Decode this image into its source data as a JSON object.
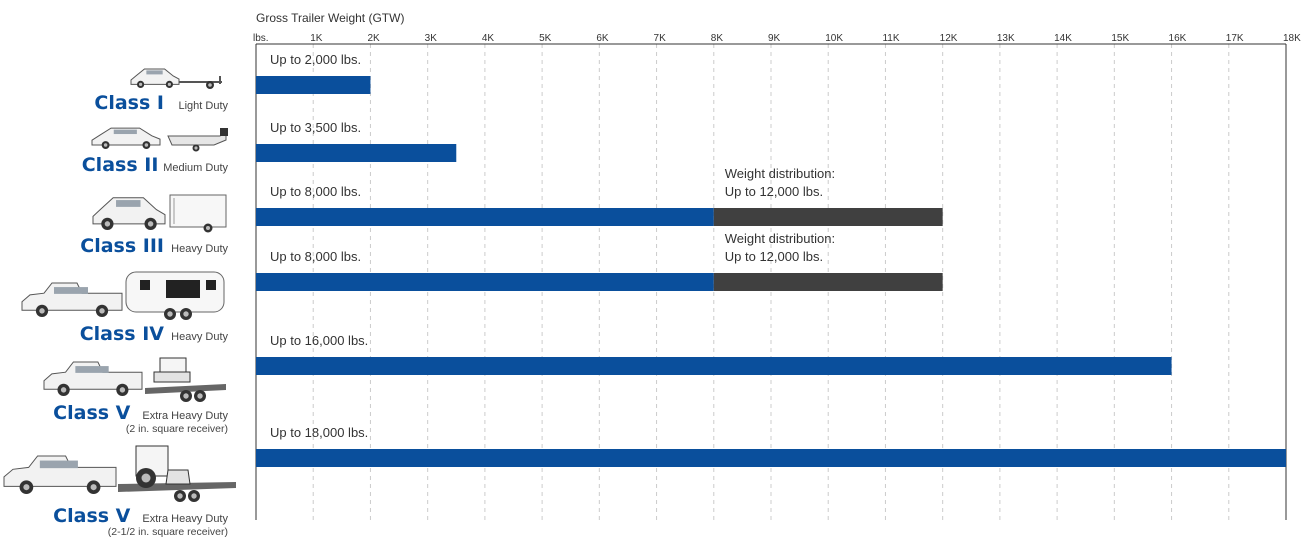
{
  "chart_data": {
    "type": "bar",
    "orientation": "horizontal",
    "stacked": true,
    "title": "Gross Trailer Weight  (GTW)",
    "x_ticks": [
      "lbs.",
      "1K",
      "2K",
      "3K",
      "4K",
      "5K",
      "6K",
      "7K",
      "8K",
      "9K",
      "10K",
      "11K",
      "12K",
      "13K",
      "14K",
      "15K",
      "16K",
      "17K",
      "18K"
    ],
    "xlim": [
      0,
      18000
    ],
    "grid": "vertical dashed",
    "categories": [
      {
        "name": "Class I",
        "duty": "Light Duty",
        "note": "",
        "icon": "car-with-utility-trailer-icon"
      },
      {
        "name": "Class II",
        "duty": "Medium Duty",
        "note": "",
        "icon": "sedan-with-boat-trailer-icon"
      },
      {
        "name": "Class III",
        "duty": "Heavy Duty",
        "note": "",
        "icon": "suv-with-cargo-trailer-icon"
      },
      {
        "name": "Class IV",
        "duty": "Heavy Duty",
        "note": "",
        "icon": "pickup-with-camper-trailer-icon"
      },
      {
        "name": "Class V",
        "duty": "Extra Heavy Duty",
        "note": "(2 in. square receiver)",
        "icon": "pickup-with-skid-steer-trailer-icon"
      },
      {
        "name": "Class V",
        "duty": "Extra Heavy Duty",
        "note": "(2-1/2 in. square receiver)",
        "icon": "pickup-with-loader-trailer-icon"
      }
    ],
    "series": [
      {
        "values": [
          2000,
          3500,
          8000,
          8000,
          16000,
          18000
        ],
        "labels": [
          "Up to 2,000 lbs.",
          "Up to 3,500 lbs.",
          "Up to 8,000 lbs.",
          "Up to 8,000 lbs.",
          "Up to 16,000 lbs.",
          "Up to 18,000 lbs."
        ]
      },
      {
        "values": [
          0,
          0,
          4000,
          4000,
          0,
          0
        ],
        "labels": [
          "",
          "",
          "Weight distribution:\nUp to 12,000 lbs.",
          "Weight distribution:\nUp to 12,000 lbs.",
          "",
          ""
        ]
      }
    ],
    "colors": {
      "primary": "#0a4f9c",
      "weight_distribution": "#404040",
      "grid": "#cccccc"
    }
  }
}
